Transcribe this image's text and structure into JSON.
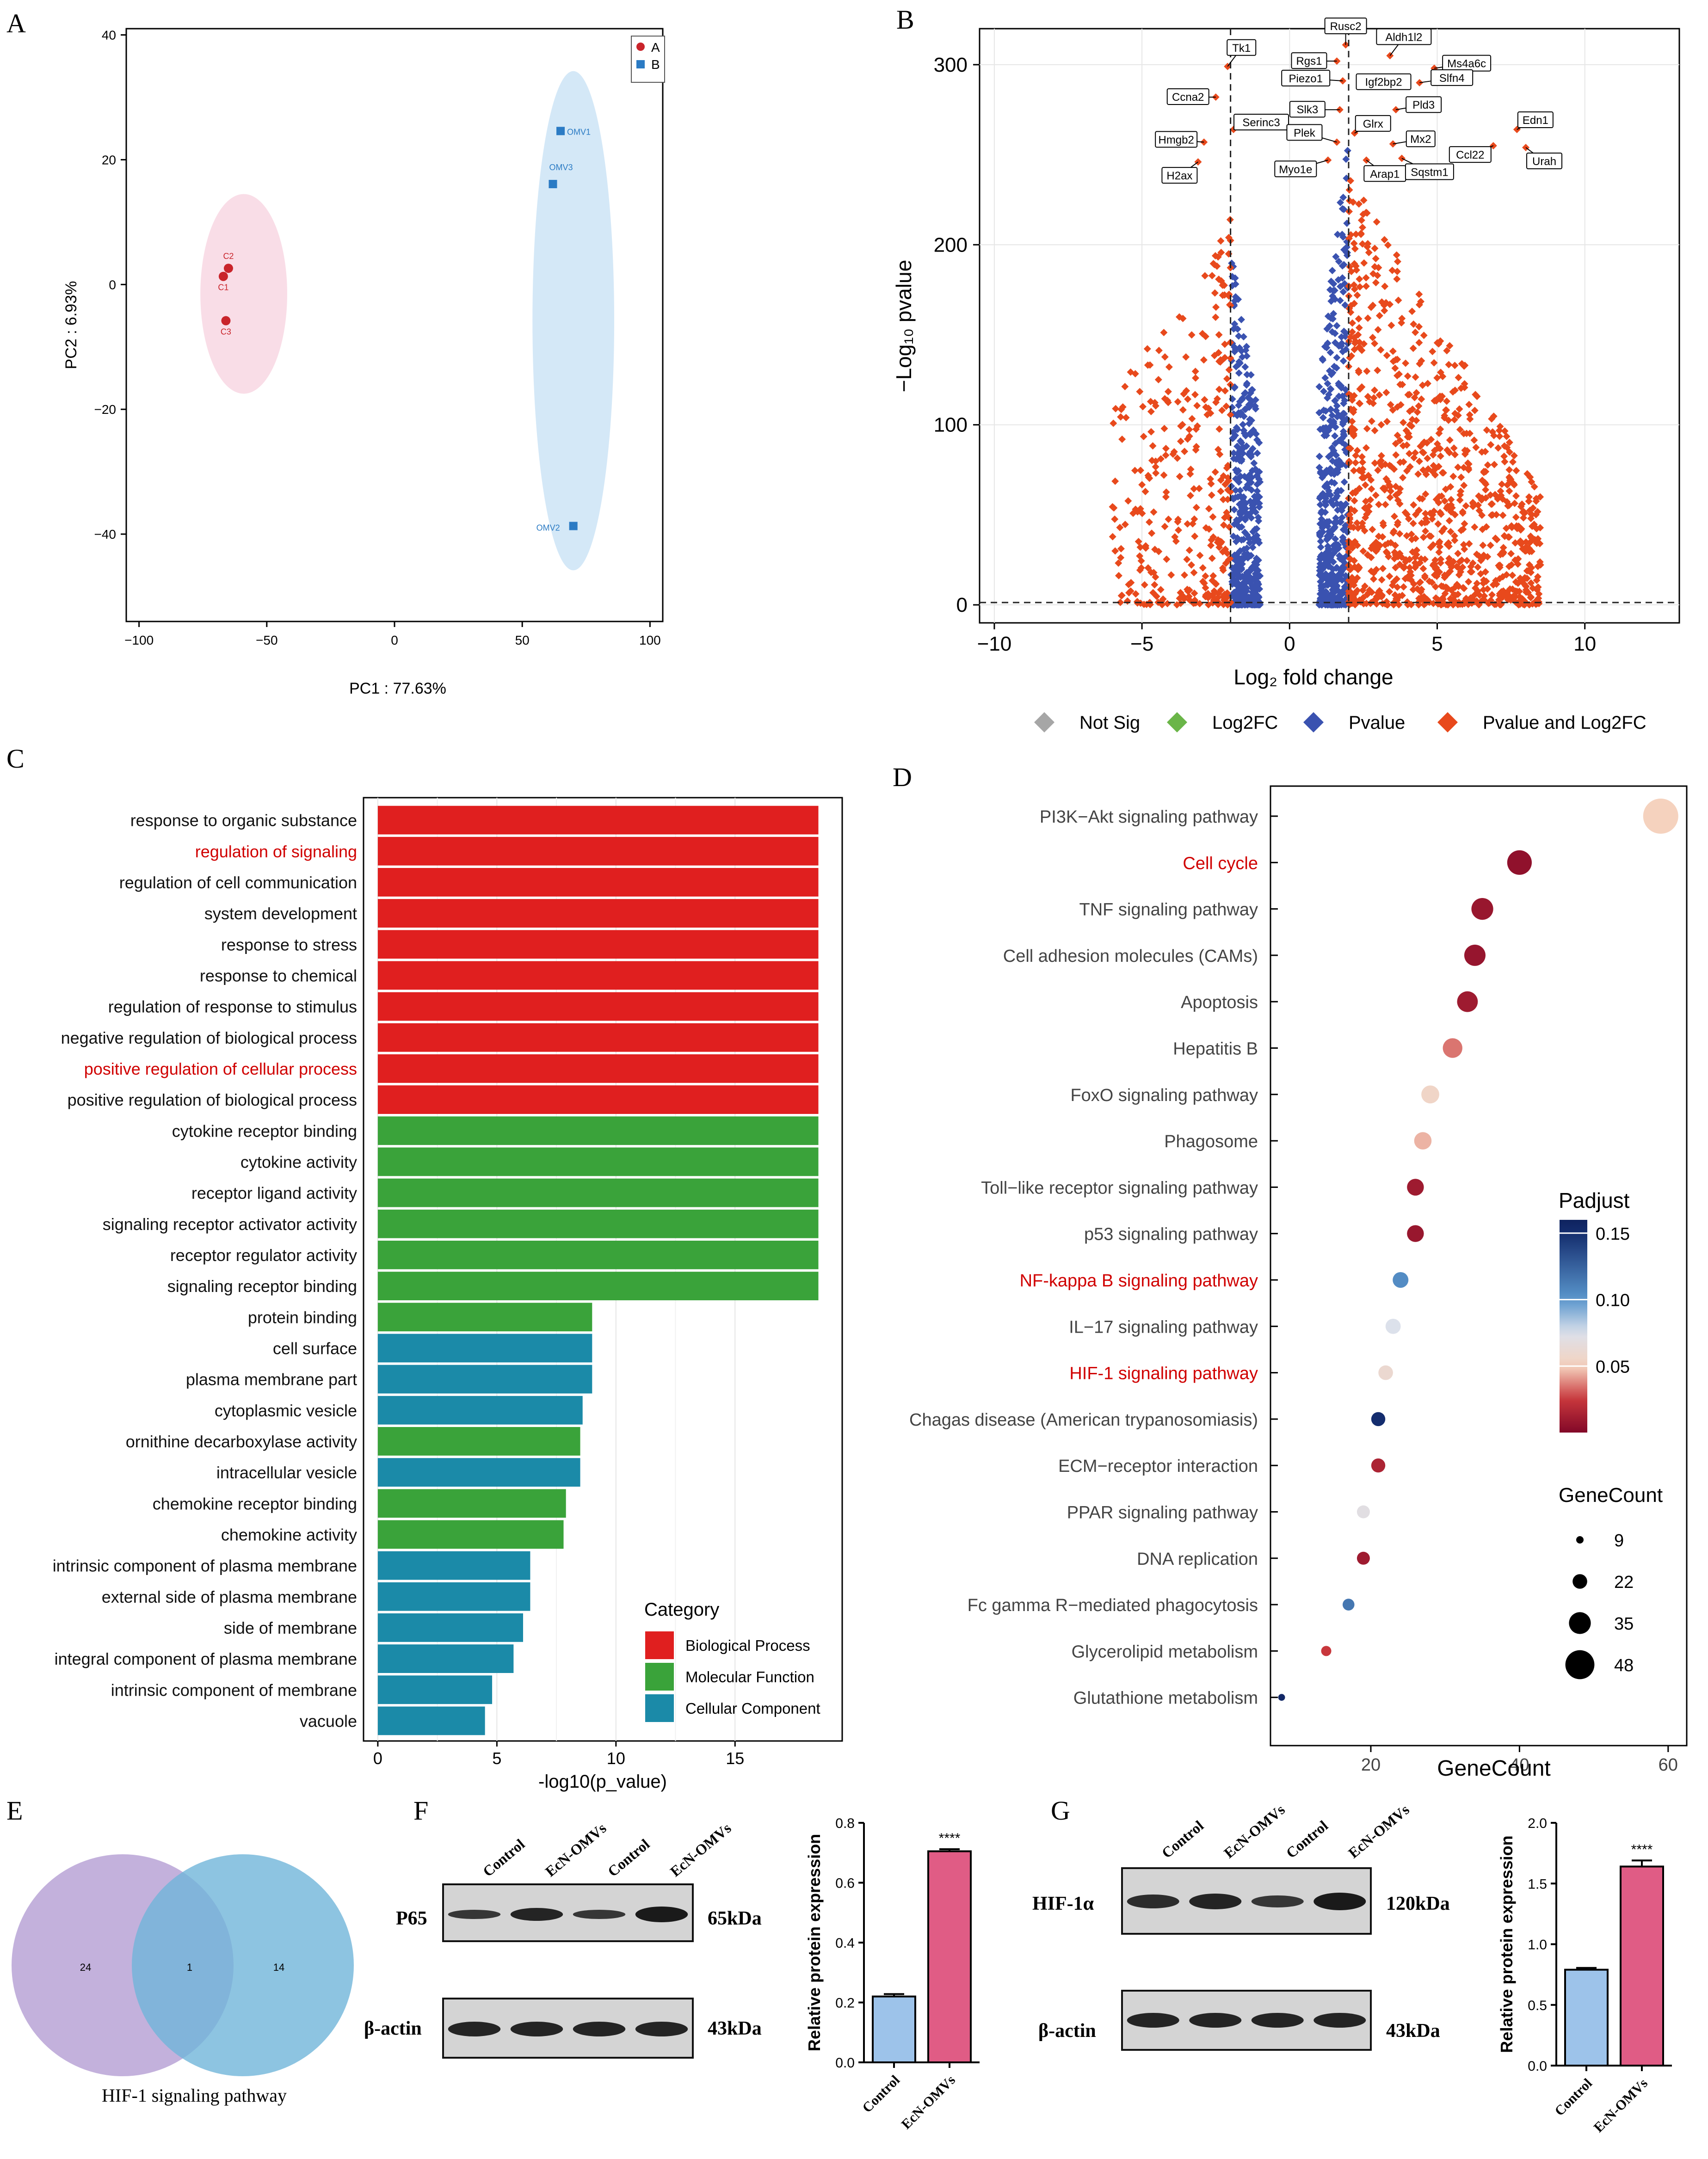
{
  "panels": {
    "A": "A",
    "B": "B",
    "C": "C",
    "D": "D",
    "E": "E",
    "F": "F",
    "G": "G"
  },
  "colors": {
    "groupA": "#c9242b",
    "groupB": "#2b7bc4",
    "bp": "#e01f1f",
    "mf": "#3aa33a",
    "cc": "#1b8aa8",
    "up": "#e8491c",
    "blue": "#3a52b0",
    "sig_red": "#d00000",
    "venn_left": "#b9a3d6",
    "venn_right": "#71b5d9",
    "bar_control": "#9dc3ea",
    "bar_ecn": "#e05c85"
  },
  "chart_data": [
    {
      "id": "pca",
      "type": "scatter",
      "panel": "A",
      "xlabel": "PC1 : 77.63%",
      "ylabel": "PC2 : 6.93%",
      "xlim": [
        -105,
        105
      ],
      "ylim": [
        -54,
        41
      ],
      "xticks": [
        -100,
        -50,
        0,
        50,
        100
      ],
      "yticks": [
        -40,
        -20,
        0,
        20,
        40
      ],
      "legend": [
        {
          "label": "A",
          "shape": "circle"
        },
        {
          "label": "B",
          "shape": "square"
        }
      ],
      "series": [
        {
          "name": "A",
          "points": [
            {
              "label": "C2",
              "x": -65,
              "y": 2.6
            },
            {
              "label": "C1",
              "x": -67,
              "y": 1.3
            },
            {
              "label": "C3",
              "x": -66,
              "y": -5.8
            }
          ],
          "ellipse": {
            "cx": -59,
            "cy": -1.5,
            "rx": 17,
            "ry": 16
          }
        },
        {
          "name": "B",
          "points": [
            {
              "label": "OMV1",
              "x": 65,
              "y": 24.6
            },
            {
              "label": "OMV3",
              "x": 62,
              "y": 16.1
            },
            {
              "label": "OMV2",
              "x": 70,
              "y": -38.7
            }
          ],
          "ellipse": {
            "cx": 70,
            "cy": -5.8,
            "rx": 16,
            "ry": 40
          }
        }
      ]
    },
    {
      "id": "volcano",
      "type": "scatter",
      "panel": "B",
      "xlabel": "Log₂ fold change",
      "ylabel": "−Log₁₀ pvalue",
      "xlim": [
        -10.5,
        13.2
      ],
      "ylim": [
        -10,
        320
      ],
      "xticks": [
        -10,
        -5,
        0,
        5,
        10
      ],
      "yticks": [
        0,
        100,
        200,
        300
      ],
      "thresholds": {
        "x": [
          -2,
          2
        ],
        "y": 1.3
      },
      "legend": [
        "Not Sig",
        "Log2FC",
        "Pvalue",
        "Pvalue and Log2FC"
      ],
      "labels": [
        {
          "gene": "Rusc2",
          "x": 1.9,
          "y": 311
        },
        {
          "gene": "Aldh1l2",
          "x": 3.4,
          "y": 305
        },
        {
          "gene": "Tk1",
          "x": -2.1,
          "y": 299
        },
        {
          "gene": "Rgs1",
          "x": 1.6,
          "y": 302
        },
        {
          "gene": "Ms4a6c",
          "x": 4.9,
          "y": 298
        },
        {
          "gene": "Piezo1",
          "x": 1.8,
          "y": 291
        },
        {
          "gene": "Igf2bp2",
          "x": 2.4,
          "y": 289
        },
        {
          "gene": "Slfn4",
          "x": 4.4,
          "y": 290
        },
        {
          "gene": "Ccna2",
          "x": -2.5,
          "y": 282
        },
        {
          "gene": "Slk3",
          "x": 1.7,
          "y": 275
        },
        {
          "gene": "Pld3",
          "x": 3.6,
          "y": 275
        },
        {
          "gene": "Serinc3",
          "x": -1.9,
          "y": 264
        },
        {
          "gene": "Edn1",
          "x": 7.7,
          "y": 264
        },
        {
          "gene": "Glrx",
          "x": 2.2,
          "y": 262
        },
        {
          "gene": "Plek",
          "x": 1.6,
          "y": 257
        },
        {
          "gene": "Mx2",
          "x": 3.5,
          "y": 256
        },
        {
          "gene": "Hmgb2",
          "x": -2.9,
          "y": 257
        },
        {
          "gene": "Ccl22",
          "x": 6.9,
          "y": 255
        },
        {
          "gene": "Urah",
          "x": 8.0,
          "y": 254
        },
        {
          "gene": "Myo1e",
          "x": 1.3,
          "y": 247
        },
        {
          "gene": "Arap1",
          "x": 2.6,
          "y": 247
        },
        {
          "gene": "Sqstm1",
          "x": 3.8,
          "y": 248
        },
        {
          "gene": "H2ax",
          "x": -3.1,
          "y": 246
        }
      ]
    },
    {
      "id": "go",
      "type": "bar",
      "panel": "C",
      "orientation": "horizontal",
      "xlabel": "-log10(p_value)",
      "xlim": [
        -0.6,
        19.5
      ],
      "xticks": [
        0,
        5,
        10,
        15
      ],
      "legend_title": "Category",
      "legend": [
        "Biological Process",
        "Molecular Function",
        "Cellular Component"
      ],
      "categories": [
        "response to organic substance",
        "regulation of signaling",
        "regulation of cell communication",
        "system development",
        "response to stress",
        "response to chemical",
        "regulation of response to stimulus",
        "negative regulation of biological process",
        "positive regulation of cellular process",
        "positive regulation of biological process",
        "cytokine receptor binding",
        "cytokine activity",
        "receptor ligand activity",
        "signaling receptor activator activity",
        "receptor regulator activity",
        "signaling receptor binding",
        "protein binding",
        "cell surface",
        "plasma membrane part",
        "cytoplasmic vesicle",
        "ornithine decarboxylase activity",
        "intracellular vesicle",
        "chemokine receptor binding",
        "chemokine activity",
        "intrinsic component of plasma membrane",
        "external side of plasma membrane",
        "side of membrane",
        "integral component of plasma membrane",
        "intrinsic component of membrane",
        "vacuole"
      ],
      "values": [
        18.5,
        18.5,
        18.5,
        18.5,
        18.5,
        18.5,
        18.5,
        18.5,
        18.5,
        18.5,
        18.5,
        18.5,
        18.5,
        18.5,
        18.5,
        18.5,
        9.0,
        9.0,
        9.0,
        8.6,
        8.5,
        8.5,
        7.9,
        7.8,
        6.4,
        6.4,
        6.1,
        5.7,
        4.8,
        4.5
      ],
      "groups": [
        "bp",
        "bp",
        "bp",
        "bp",
        "bp",
        "bp",
        "bp",
        "bp",
        "bp",
        "bp",
        "mf",
        "mf",
        "mf",
        "mf",
        "mf",
        "mf",
        "mf",
        "cc",
        "cc",
        "cc",
        "mf",
        "cc",
        "mf",
        "mf",
        "cc",
        "cc",
        "cc",
        "cc",
        "cc",
        "cc"
      ],
      "highlight": [
        1,
        8
      ]
    },
    {
      "id": "kegg",
      "type": "scatter",
      "panel": "D",
      "xlabel": "GeneCount",
      "xlim": [
        6.5,
        62.5
      ],
      "xticks": [
        20,
        40,
        60
      ],
      "color_title": "Padjust",
      "color_ticks": [
        0.15,
        0.1,
        0.05
      ],
      "size_title": "GeneCount",
      "size_ticks": [
        9,
        22,
        35,
        48
      ],
      "categories": [
        "PI3K−Akt signaling pathway",
        "Cell  cycle",
        "TNF signaling pathway",
        "Cell adhesion molecules (CAMs)",
        "Apoptosis",
        "Hepatitis B",
        "FoxO signaling pathway",
        "Phagosome",
        "Toll−like receptor signaling pathway",
        "p53 signaling pathway",
        "NF-kappa B signaling pathway",
        "IL−17 signaling pathway",
        "HIF-1 signaling pathway",
        "Chagas disease (American trypanosomiasis)",
        "ECM−receptor interaction",
        "PPAR signaling pathway",
        "DNA replication",
        "Fc gamma R−mediated phagocytosis",
        "Glycerolipid metabolism",
        "Glutathione metabolism"
      ],
      "gene_counts": [
        59,
        40,
        35,
        34,
        33,
        31,
        28,
        27,
        26,
        26,
        24,
        23,
        22,
        21,
        21,
        19,
        19,
        17,
        14,
        8
      ],
      "padjust": [
        0.05,
        0.005,
        0.008,
        0.007,
        0.01,
        0.035,
        0.055,
        0.045,
        0.01,
        0.008,
        0.105,
        0.075,
        0.06,
        0.15,
        0.015,
        0.07,
        0.01,
        0.115,
        0.025,
        0.155
      ],
      "highlight": [
        1,
        10,
        12
      ]
    },
    {
      "id": "p65_bar",
      "type": "bar",
      "panel": "F",
      "ylabel": "Relative protein expression",
      "ylim": [
        0,
        0.8
      ],
      "yticks": [
        0.0,
        0.2,
        0.4,
        0.6,
        0.8
      ],
      "categories": [
        "Control",
        "EcN-OMVs"
      ],
      "values": [
        0.22,
        0.705
      ],
      "errors": [
        0.008,
        0.007
      ],
      "significance": "****"
    },
    {
      "id": "hif_bar",
      "type": "bar",
      "panel": "G",
      "ylabel": "Relative protein expression",
      "ylim": [
        0,
        2.0
      ],
      "yticks": [
        0.0,
        0.5,
        1.0,
        1.5,
        2.0
      ],
      "categories": [
        "Control",
        "EcN-OMVs"
      ],
      "values": [
        0.79,
        1.64
      ],
      "errors": [
        0.015,
        0.05
      ],
      "significance": "****"
    }
  ],
  "venn": {
    "left": "24",
    "center": "1",
    "right": "14",
    "caption": "HIF-1 signaling pathway"
  },
  "blotF": {
    "lanes": [
      "Control",
      "EcN-OMVs",
      "Control",
      "EcN-OMVs"
    ],
    "rows": [
      {
        "label": "P65",
        "kda": "65kDa"
      },
      {
        "label": "β-actin",
        "kda": "43kDa"
      }
    ]
  },
  "blotG": {
    "lanes": [
      "Control",
      "EcN-OMVs",
      "Control",
      "EcN-OMVs"
    ],
    "rows": [
      {
        "label": "HIF-1α",
        "kda": "120kDa"
      },
      {
        "label": "β-actin",
        "kda": "43kDa"
      }
    ]
  }
}
